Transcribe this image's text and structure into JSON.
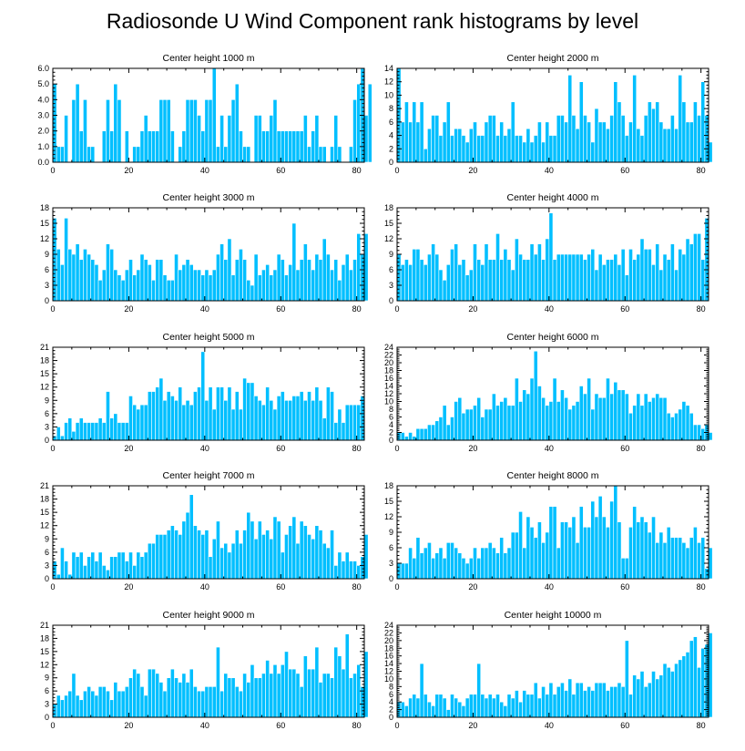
{
  "figure": {
    "title": "Radiosonde U Wind Component rank histograms by level",
    "bar_color": "#00bfff"
  },
  "chart_data": [
    {
      "type": "bar",
      "title": "Center height 1000 m",
      "xlim": [
        0,
        82
      ],
      "xticks": [
        0,
        20,
        40,
        60,
        80
      ],
      "ylim": [
        0,
        6
      ],
      "yticks": [
        "0.0",
        "1.0",
        "2.0",
        "3.0",
        "4.0",
        "5.0",
        "6.0"
      ],
      "values": [
        5,
        1,
        1,
        3,
        0,
        4,
        5,
        2,
        4,
        1,
        1,
        0,
        0,
        2,
        4,
        2,
        5,
        4,
        0,
        2,
        0,
        1,
        1,
        2,
        3,
        2,
        2,
        2,
        4,
        4,
        4,
        2,
        0,
        1,
        2,
        4,
        4,
        4,
        3,
        2,
        4,
        4,
        6,
        1,
        3,
        1,
        3,
        4,
        5,
        2,
        1,
        1,
        0,
        3,
        3,
        2,
        2,
        3,
        4,
        2,
        2,
        2,
        2,
        2,
        2,
        2,
        3,
        1,
        2,
        3,
        1,
        1,
        0,
        1,
        3,
        1,
        0,
        0,
        1,
        4,
        5,
        6,
        3,
        5
      ],
      "xlabel": "",
      "ylabel": ""
    },
    {
      "type": "bar",
      "title": "Center height 2000 m",
      "xlim": [
        0,
        82
      ],
      "xticks": [
        0,
        20,
        40,
        60,
        80
      ],
      "ylim": [
        0,
        14
      ],
      "yticks": [
        "0",
        "2",
        "4",
        "6",
        "8",
        "10",
        "12",
        "14"
      ],
      "values": [
        14,
        6,
        9,
        6,
        9,
        6,
        9,
        2,
        5,
        7,
        7,
        4,
        6,
        9,
        4,
        5,
        5,
        4,
        3,
        5,
        6,
        4,
        4,
        6,
        7,
        7,
        4,
        6,
        4,
        5,
        9,
        4,
        4,
        3,
        5,
        3,
        4,
        6,
        3,
        6,
        4,
        4,
        7,
        7,
        6,
        13,
        7,
        5,
        12,
        7,
        6,
        3,
        8,
        6,
        6,
        5,
        7,
        12,
        9,
        7,
        4,
        6,
        13,
        5,
        4,
        7,
        9,
        8,
        9,
        6,
        5,
        5,
        7,
        5,
        13,
        9,
        6,
        6,
        9,
        7,
        12,
        7,
        3
      ],
      "xlabel": "",
      "ylabel": ""
    },
    {
      "type": "bar",
      "title": "Center height 3000 m",
      "xlim": [
        0,
        82
      ],
      "xticks": [
        0,
        20,
        40,
        60,
        80
      ],
      "ylim": [
        0,
        18
      ],
      "yticks": [
        "0",
        "3",
        "6",
        "9",
        "12",
        "15",
        "18"
      ],
      "values": [
        16,
        10,
        7,
        16,
        10,
        9,
        11,
        8,
        10,
        9,
        8,
        7,
        4,
        6,
        11,
        10,
        6,
        5,
        4,
        6,
        8,
        5,
        6,
        9,
        8,
        7,
        4,
        8,
        8,
        5,
        4,
        4,
        9,
        6,
        7,
        8,
        7,
        6,
        6,
        5,
        6,
        5,
        6,
        9,
        11,
        8,
        12,
        5,
        8,
        10,
        8,
        4,
        3,
        9,
        5,
        6,
        7,
        5,
        6,
        9,
        8,
        5,
        7,
        15,
        6,
        8,
        11,
        8,
        6,
        9,
        8,
        12,
        9,
        6,
        8,
        4,
        7,
        9,
        6,
        8,
        13,
        9,
        13
      ],
      "xlabel": "",
      "ylabel": ""
    },
    {
      "type": "bar",
      "title": "Center height 4000 m",
      "xlim": [
        0,
        82
      ],
      "xticks": [
        0,
        20,
        40,
        60,
        80
      ],
      "ylim": [
        0,
        18
      ],
      "yticks": [
        "0",
        "3",
        "6",
        "9",
        "12",
        "15",
        "18"
      ],
      "values": [
        9,
        7,
        8,
        7,
        10,
        10,
        8,
        7,
        9,
        11,
        9,
        6,
        4,
        7,
        10,
        11,
        7,
        8,
        5,
        6,
        11,
        8,
        7,
        11,
        8,
        8,
        13,
        8,
        10,
        8,
        6,
        12,
        9,
        8,
        8,
        11,
        9,
        11,
        8,
        12,
        17,
        8,
        9,
        9,
        9,
        9,
        9,
        9,
        9,
        8,
        9,
        10,
        6,
        9,
        7,
        8,
        8,
        9,
        7,
        10,
        5,
        10,
        8,
        9,
        12,
        10,
        10,
        7,
        11,
        6,
        9,
        8,
        11,
        6,
        10,
        9,
        12,
        11,
        13,
        13,
        8,
        16
      ],
      "xlabel": "",
      "ylabel": ""
    },
    {
      "type": "bar",
      "title": "Center height 5000 m",
      "xlim": [
        0,
        82
      ],
      "xticks": [
        0,
        20,
        40,
        60,
        80
      ],
      "ylim": [
        0,
        21
      ],
      "yticks": [
        "0",
        "3",
        "6",
        "9",
        "12",
        "15",
        "18",
        "21"
      ],
      "values": [
        1,
        3,
        1,
        4,
        5,
        2,
        4,
        5,
        4,
        4,
        4,
        4,
        5,
        4,
        11,
        5,
        6,
        4,
        4,
        4,
        10,
        8,
        7,
        8,
        8,
        11,
        11,
        12,
        14,
        9,
        11,
        10,
        9,
        12,
        8,
        9,
        8,
        11,
        12,
        20,
        9,
        12,
        7,
        12,
        12,
        9,
        12,
        7,
        11,
        7,
        14,
        13,
        13,
        10,
        9,
        8,
        12,
        9,
        7,
        10,
        11,
        9,
        9,
        10,
        10,
        11,
        9,
        11,
        9,
        12,
        9,
        5,
        12,
        11,
        4,
        7,
        4,
        8,
        8,
        8,
        8,
        10
      ],
      "xlabel": "",
      "ylabel": ""
    },
    {
      "type": "bar",
      "title": "Center height 6000 m",
      "xlim": [
        0,
        82
      ],
      "xticks": [
        0,
        20,
        40,
        60,
        80
      ],
      "ylim": [
        0,
        24
      ],
      "yticks": [
        "0",
        "2",
        "4",
        "6",
        "8",
        "10",
        "12",
        "14",
        "16",
        "18",
        "20",
        "22",
        "24"
      ],
      "values": [
        2,
        2,
        1,
        2,
        1,
        3,
        3,
        3,
        4,
        4,
        5,
        6,
        9,
        4,
        6,
        10,
        11,
        7,
        8,
        8,
        9,
        11,
        6,
        8,
        8,
        12,
        9,
        10,
        11,
        9,
        9,
        16,
        10,
        13,
        12,
        16,
        23,
        14,
        11,
        9,
        10,
        16,
        10,
        13,
        11,
        8,
        9,
        10,
        14,
        12,
        16,
        8,
        12,
        11,
        11,
        16,
        12,
        15,
        13,
        13,
        12,
        7,
        9,
        12,
        9,
        12,
        10,
        11,
        12,
        11,
        11,
        7,
        6,
        7,
        8,
        10,
        9,
        7,
        4,
        4,
        3,
        4,
        2
      ],
      "xlabel": "",
      "ylabel": ""
    },
    {
      "type": "bar",
      "title": "Center height 7000 m",
      "xlim": [
        0,
        82
      ],
      "xticks": [
        0,
        20,
        40,
        60,
        80
      ],
      "ylim": [
        0,
        21
      ],
      "yticks": [
        "0",
        "3",
        "6",
        "9",
        "12",
        "15",
        "18",
        "21"
      ],
      "values": [
        4,
        1,
        7,
        4,
        1,
        6,
        5,
        6,
        3,
        5,
        6,
        4,
        6,
        3,
        2,
        5,
        5,
        6,
        6,
        4,
        6,
        3,
        6,
        5,
        6,
        8,
        8,
        10,
        10,
        10,
        11,
        12,
        11,
        10,
        13,
        15,
        19,
        12,
        11,
        10,
        11,
        5,
        9,
        13,
        7,
        8,
        6,
        8,
        11,
        8,
        11,
        15,
        13,
        9,
        13,
        10,
        11,
        9,
        14,
        13,
        6,
        10,
        12,
        14,
        8,
        13,
        12,
        10,
        9,
        12,
        11,
        8,
        7,
        11,
        3,
        6,
        4,
        6,
        4,
        4,
        3,
        5,
        10
      ],
      "xlabel": "",
      "ylabel": ""
    },
    {
      "type": "bar",
      "title": "Center height 8000 m",
      "xlim": [
        0,
        82
      ],
      "xticks": [
        0,
        20,
        40,
        60,
        80
      ],
      "ylim": [
        0,
        18
      ],
      "yticks": [
        "0",
        "3",
        "6",
        "9",
        "12",
        "15",
        "18"
      ],
      "values": [
        3,
        3,
        3,
        6,
        4,
        8,
        5,
        6,
        7,
        4,
        5,
        6,
        4,
        7,
        7,
        6,
        5,
        4,
        3,
        4,
        6,
        4,
        6,
        6,
        7,
        6,
        5,
        8,
        5,
        6,
        9,
        9,
        13,
        6,
        12,
        10,
        8,
        11,
        7,
        9,
        14,
        14,
        6,
        11,
        11,
        10,
        12,
        7,
        14,
        10,
        10,
        15,
        12,
        16,
        12,
        10,
        15,
        18,
        11,
        4,
        4,
        10,
        14,
        11,
        12,
        11,
        9,
        12,
        7,
        9,
        7,
        10,
        8,
        8,
        8,
        7,
        6,
        8,
        10,
        7,
        8,
        2,
        6
      ],
      "xlabel": "",
      "ylabel": ""
    },
    {
      "type": "bar",
      "title": "Center height 9000 m",
      "xlim": [
        0,
        82
      ],
      "xticks": [
        0,
        20,
        40,
        60,
        80
      ],
      "ylim": [
        0,
        21
      ],
      "yticks": [
        "0",
        "3",
        "6",
        "9",
        "12",
        "15",
        "18",
        "21"
      ],
      "values": [
        3,
        5,
        4,
        5,
        6,
        10,
        5,
        4,
        6,
        7,
        6,
        5,
        7,
        7,
        6,
        4,
        8,
        6,
        6,
        7,
        9,
        11,
        10,
        7,
        5,
        11,
        11,
        10,
        8,
        6,
        9,
        11,
        9,
        8,
        10,
        8,
        11,
        7,
        6,
        6,
        7,
        7,
        7,
        16,
        6,
        10,
        9,
        9,
        7,
        6,
        10,
        8,
        12,
        9,
        9,
        10,
        13,
        10,
        12,
        10,
        12,
        15,
        11,
        11,
        10,
        7,
        14,
        11,
        11,
        16,
        8,
        10,
        10,
        9,
        16,
        14,
        11,
        19,
        9,
        10,
        12,
        7,
        15
      ],
      "xlabel": "",
      "ylabel": ""
    },
    {
      "type": "bar",
      "title": "Center height 10000 m",
      "xlim": [
        0,
        82
      ],
      "xticks": [
        0,
        20,
        40,
        60,
        80
      ],
      "ylim": [
        0,
        24
      ],
      "yticks": [
        "0",
        "2",
        "4",
        "6",
        "8",
        "10",
        "12",
        "14",
        "16",
        "18",
        "20",
        "22",
        "24"
      ],
      "values": [
        4,
        4,
        3,
        5,
        6,
        5,
        14,
        6,
        4,
        3,
        6,
        6,
        5,
        2,
        6,
        5,
        4,
        3,
        5,
        6,
        6,
        14,
        6,
        5,
        6,
        5,
        6,
        4,
        3,
        6,
        5,
        7,
        4,
        7,
        6,
        6,
        9,
        5,
        8,
        6,
        9,
        6,
        8,
        9,
        7,
        10,
        6,
        9,
        9,
        7,
        8,
        7,
        9,
        9,
        9,
        7,
        8,
        8,
        9,
        8,
        20,
        6,
        11,
        10,
        12,
        8,
        9,
        12,
        10,
        11,
        14,
        13,
        12,
        14,
        15,
        16,
        17,
        20,
        21,
        13,
        18,
        19,
        22
      ],
      "xlabel": "",
      "ylabel": ""
    }
  ]
}
